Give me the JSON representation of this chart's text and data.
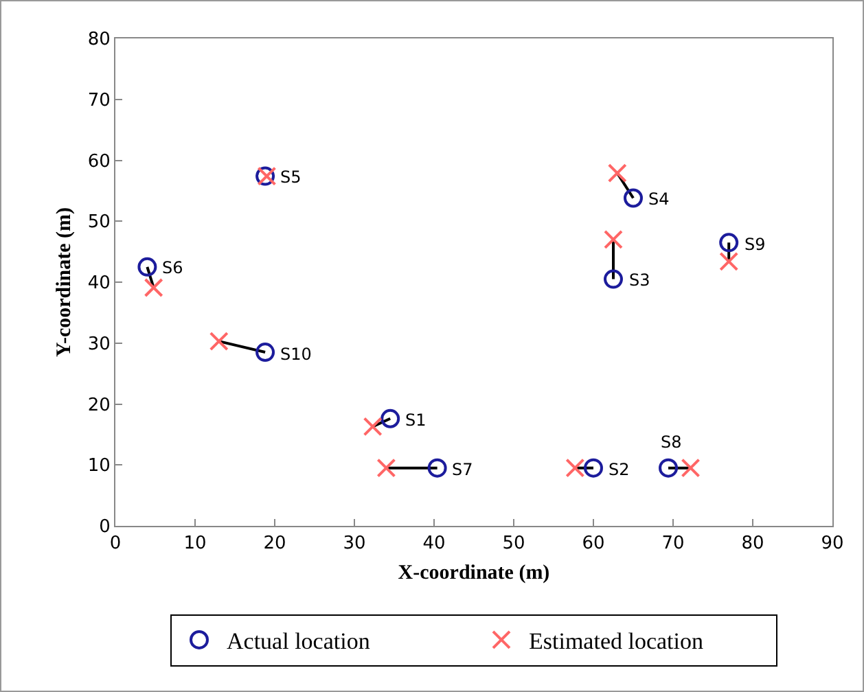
{
  "chart_data": {
    "type": "scatter",
    "xlabel": "X-coordinate (m)",
    "ylabel": "Y-coordinate (m)",
    "xlim": [
      0,
      90
    ],
    "xticks": [
      0,
      10,
      20,
      30,
      40,
      50,
      60,
      70,
      80,
      90
    ],
    "ylim": [
      0,
      80
    ],
    "yticks": [
      0,
      10,
      20,
      30,
      40,
      50,
      60,
      70,
      80
    ],
    "grid": false,
    "legend": "bottom",
    "series": [
      {
        "type": "line",
        "color": "#000000",
        "marker": "none",
        "line_style": "solid",
        "x": [
          34.5,
          32.3,
          null,
          60,
          57.7,
          null,
          62.5,
          62.5,
          null,
          65,
          63,
          null,
          4,
          4.8,
          null,
          40.4,
          34,
          null,
          69.4,
          72.2,
          null,
          77,
          77,
          null,
          18.8,
          13
        ],
        "values": [
          17.6,
          16.3,
          null,
          9.5,
          9.5,
          null,
          40.5,
          47,
          null,
          53.8,
          57.9,
          null,
          42.5,
          39.1,
          null,
          9.5,
          9.5,
          null,
          9.5,
          9.5,
          null,
          46.5,
          43.4,
          null,
          28.5,
          30.3
        ]
      },
      {
        "name": "Actual location",
        "color": "#1c1c9c",
        "marker": "circle",
        "x": [
          34.5,
          60,
          62.5,
          65,
          18.8,
          4,
          40.4,
          69.4,
          77,
          18.8
        ],
        "values": [
          17.6,
          9.5,
          40.5,
          53.8,
          57.4,
          42.5,
          9.5,
          9.5,
          46.5,
          28.5
        ]
      },
      {
        "name": "Estimated location",
        "color": "#ff6666",
        "marker": "cross",
        "x": [
          32.3,
          57.7,
          62.5,
          63,
          19,
          4.8,
          34,
          72.2,
          77,
          13
        ],
        "values": [
          16.3,
          9.5,
          47,
          57.9,
          57.4,
          39.1,
          9.5,
          9.5,
          43.4,
          30.3
        ]
      }
    ],
    "annotations": [
      {
        "text": "S1",
        "x": 34.5,
        "y": 17.6
      },
      {
        "text": "S2",
        "x": 60,
        "y": 9.5
      },
      {
        "text": "S3",
        "x": 62.5,
        "y": 40.5
      },
      {
        "text": "S4",
        "x": 65,
        "y": 53.8
      },
      {
        "text": "S5",
        "x": 18.8,
        "y": 57.4
      },
      {
        "text": "S6",
        "x": 4,
        "y": 42.5
      },
      {
        "text": "S7",
        "x": 40.4,
        "y": 9.5
      },
      {
        "text": "S8",
        "x": 69.4,
        "y": 9.5
      },
      {
        "text": "S9",
        "x": 77,
        "y": 46.5
      },
      {
        "text": "S10",
        "x": 18.8,
        "y": 28.5
      }
    ]
  }
}
